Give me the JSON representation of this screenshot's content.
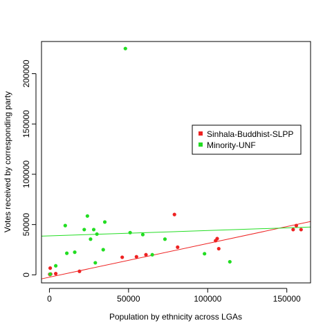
{
  "chart_data": {
    "type": "scatter",
    "title": "",
    "xlabel": "Population by ethnicity across LGAs",
    "ylabel": "Votes received by corresponding party",
    "xlim": [
      -5000,
      165000
    ],
    "ylim": [
      -8000,
      232000
    ],
    "x_ticks": [
      0,
      50000,
      100000,
      150000
    ],
    "y_ticks": [
      0,
      50000,
      100000,
      150000,
      200000
    ],
    "legend_position": "right",
    "grid": false,
    "series": [
      {
        "name": "Sinhala-Buddhist-SLPP",
        "color": "#ee2222",
        "points": [
          [
            200,
            600
          ],
          [
            400,
            300
          ],
          [
            800,
            800
          ],
          [
            500,
            6700
          ],
          [
            4000,
            1200
          ],
          [
            19000,
            3500
          ],
          [
            46000,
            17500
          ],
          [
            55000,
            18000
          ],
          [
            61000,
            20000
          ],
          [
            79000,
            60000
          ],
          [
            81000,
            27500
          ],
          [
            105000,
            34000
          ],
          [
            106000,
            36000
          ],
          [
            107000,
            26000
          ],
          [
            154000,
            45000
          ],
          [
            156000,
            49000
          ],
          [
            159000,
            45000
          ]
        ],
        "trend": {
          "x": [
            -5000,
            165000
          ],
          "y": [
            -4000,
            53000
          ]
        }
      },
      {
        "name": "Minority-UNF",
        "color": "#22dd22",
        "points": [
          [
            500,
            700
          ],
          [
            4000,
            9000
          ],
          [
            10000,
            49000
          ],
          [
            11000,
            21500
          ],
          [
            16000,
            22500
          ],
          [
            22000,
            45000
          ],
          [
            24000,
            58500
          ],
          [
            26000,
            35500
          ],
          [
            28000,
            45000
          ],
          [
            29000,
            12000
          ],
          [
            30000,
            40500
          ],
          [
            34000,
            25000
          ],
          [
            35000,
            52500
          ],
          [
            48000,
            225000
          ],
          [
            51000,
            42000
          ],
          [
            59000,
            40000
          ],
          [
            65000,
            20000
          ],
          [
            73000,
            35500
          ],
          [
            98000,
            21000
          ],
          [
            114000,
            13000
          ]
        ],
        "trend": {
          "x": [
            -5000,
            165000
          ],
          "y": [
            38500,
            47500
          ]
        }
      }
    ]
  }
}
